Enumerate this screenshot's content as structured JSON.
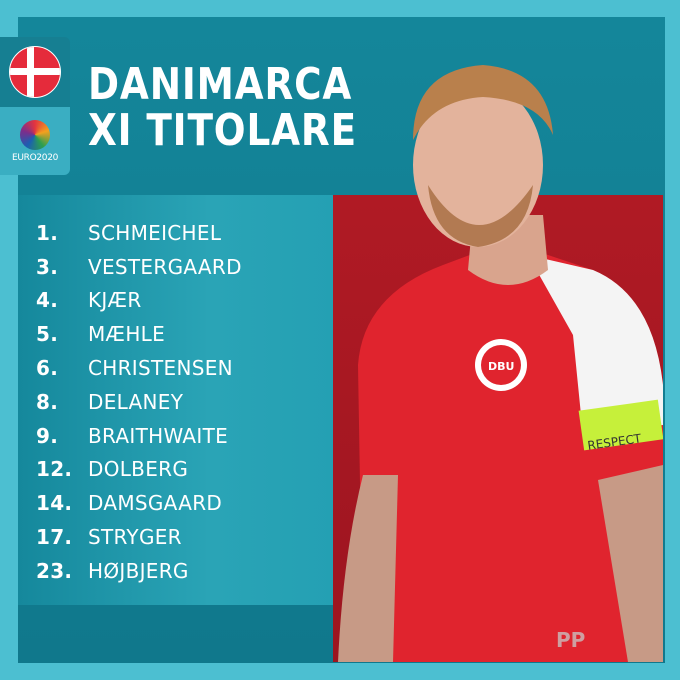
{
  "header": {
    "title_line1": "DANIMARCA",
    "title_line2": "XI TITOLARE"
  },
  "badges": {
    "flag": "denmark-flag",
    "logo_text": "EURO2020"
  },
  "lineup": [
    {
      "number": "1.",
      "name": "SCHMEICHEL"
    },
    {
      "number": "3.",
      "name": "VESTERGAARD"
    },
    {
      "number": "4.",
      "name": "KJÆR"
    },
    {
      "number": "5.",
      "name": "MÆHLE"
    },
    {
      "number": "6.",
      "name": "CHRISTENSEN"
    },
    {
      "number": "8.",
      "name": "DELANEY"
    },
    {
      "number": "9.",
      "name": "BRAITHWAITE"
    },
    {
      "number": "12.",
      "name": "DOLBERG"
    },
    {
      "number": "14.",
      "name": "DAMSGAARD"
    },
    {
      "number": "17.",
      "name": "STRYGER"
    },
    {
      "number": "23.",
      "name": "HØJBJERG"
    }
  ],
  "photo": {
    "armband_text": "RESPECT",
    "crest_text": "DBU"
  },
  "watermark": "PP",
  "colors": {
    "background": "#4cbfd1",
    "panel": "#14869a",
    "photo_bg": "#b01a24",
    "shirt": "#e0242e"
  }
}
